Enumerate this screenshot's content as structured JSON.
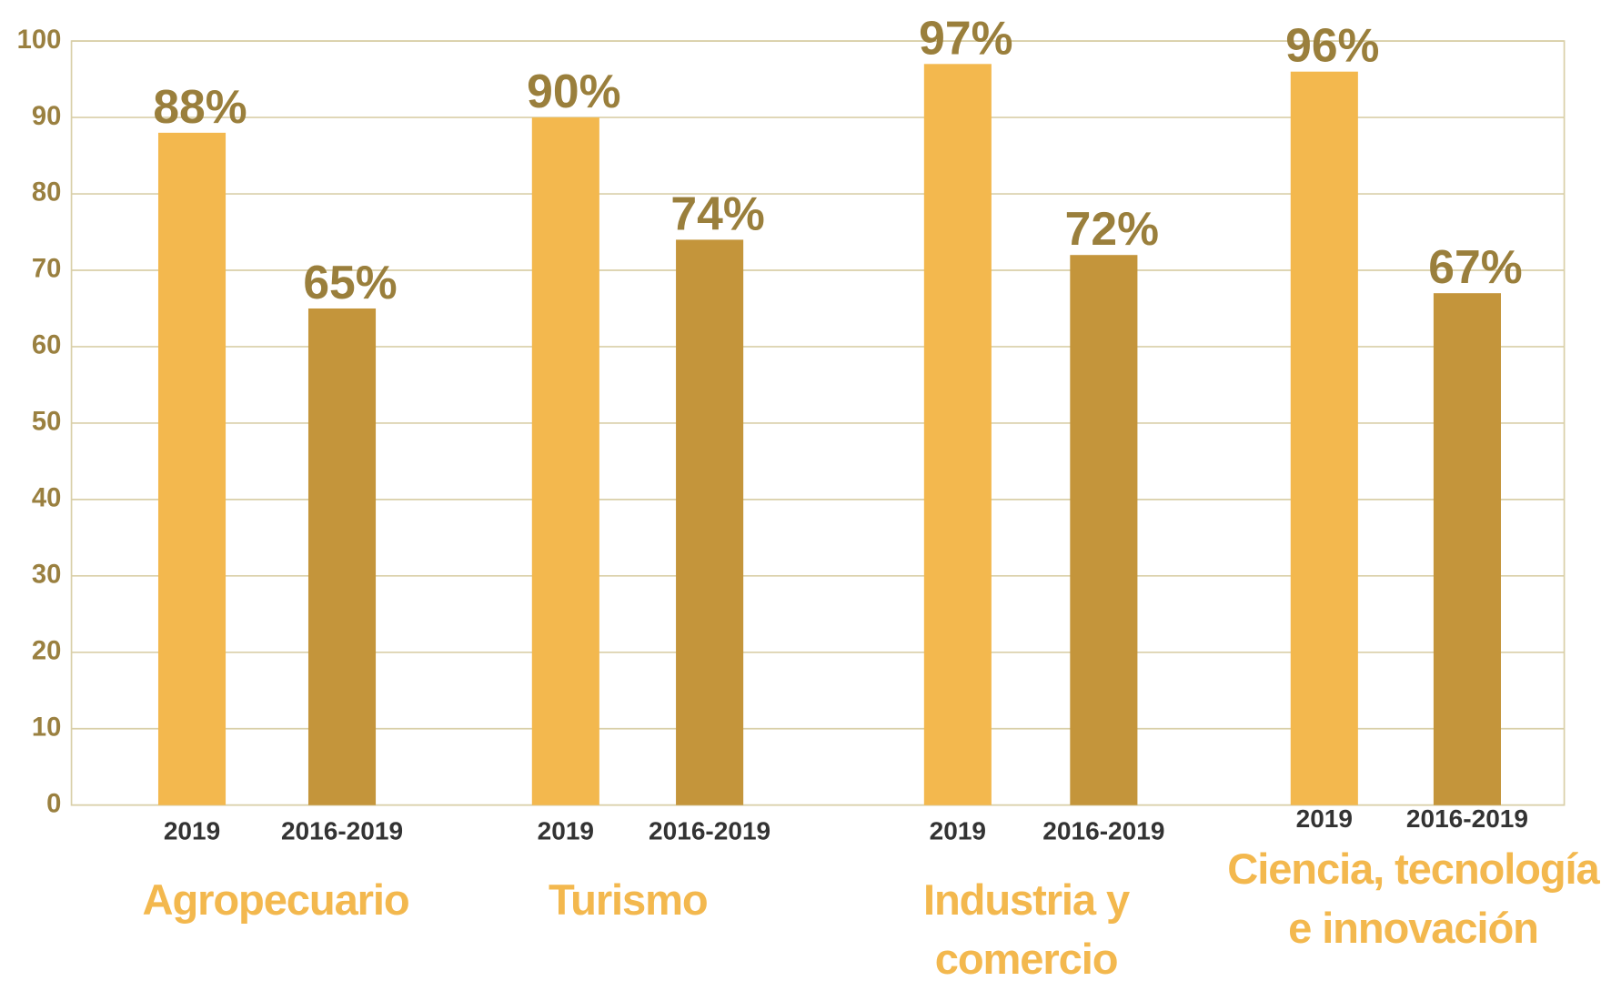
{
  "chart_data": {
    "type": "bar",
    "categories": [
      "Agropecuario",
      "Turismo",
      "Industria y comercio",
      "Ciencia, tecnología e innovación"
    ],
    "series": [
      {
        "name": "2019",
        "color": "#f3b84e",
        "values": [
          88,
          90,
          97,
          96
        ],
        "value_labels": [
          "88%",
          "90%",
          "97%",
          "96%"
        ]
      },
      {
        "name": "2016-2019",
        "color": "#c4953b",
        "values": [
          65,
          74,
          72,
          67
        ],
        "value_labels": [
          "65%",
          "74%",
          "72%",
          "67%"
        ]
      }
    ],
    "ylim": [
      0,
      100
    ],
    "yticks": [
      0,
      10,
      20,
      30,
      40,
      50,
      60,
      70,
      80,
      90,
      100
    ],
    "grid": true
  }
}
